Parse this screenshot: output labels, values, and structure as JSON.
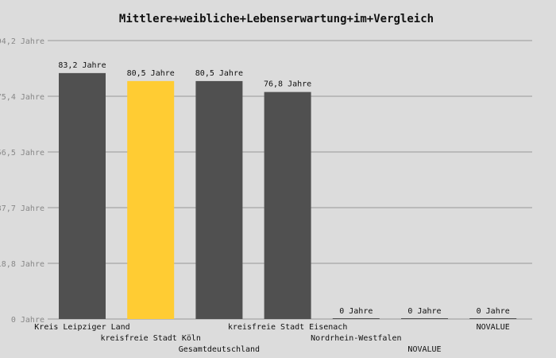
{
  "chart_data": {
    "type": "bar",
    "title": "Mittlere+weibliche+Lebenserwartung+im+Vergleich",
    "categories": [
      "Kreis Leipziger Land",
      "kreisfreie Stadt Köln",
      "Gesamtdeutschland",
      "kreisfreie Stadt Eisenach",
      "Nordrhein-Westfalen",
      "NOVALUE",
      "NOVALUE"
    ],
    "values": [
      83.2,
      80.5,
      80.5,
      76.8,
      0,
      0,
      0
    ],
    "value_labels": [
      "83,2 Jahre",
      "80,5 Jahre",
      "80,5 Jahre",
      "76,8 Jahre",
      "0 Jahre",
      "0 Jahre",
      "0 Jahre"
    ],
    "yticks": [
      {
        "value": 0,
        "label": "0 Jahre"
      },
      {
        "value": 18.84,
        "label": "18,8 Jahre"
      },
      {
        "value": 37.68,
        "label": "37,7 Jahre"
      },
      {
        "value": 56.52,
        "label": "56,5 Jahre"
      },
      {
        "value": 75.36,
        "label": "75,4 Jahre"
      },
      {
        "value": 94.2,
        "label": "94,2 Jahre"
      }
    ],
    "ylim": [
      0,
      94.2
    ],
    "grid": true,
    "highlight_index": 1,
    "colors": {
      "bar": "#505050",
      "highlight": "#ffcc33",
      "background": "#dcdcdc",
      "grid": "#999999",
      "ytick_text": "#888888"
    }
  }
}
